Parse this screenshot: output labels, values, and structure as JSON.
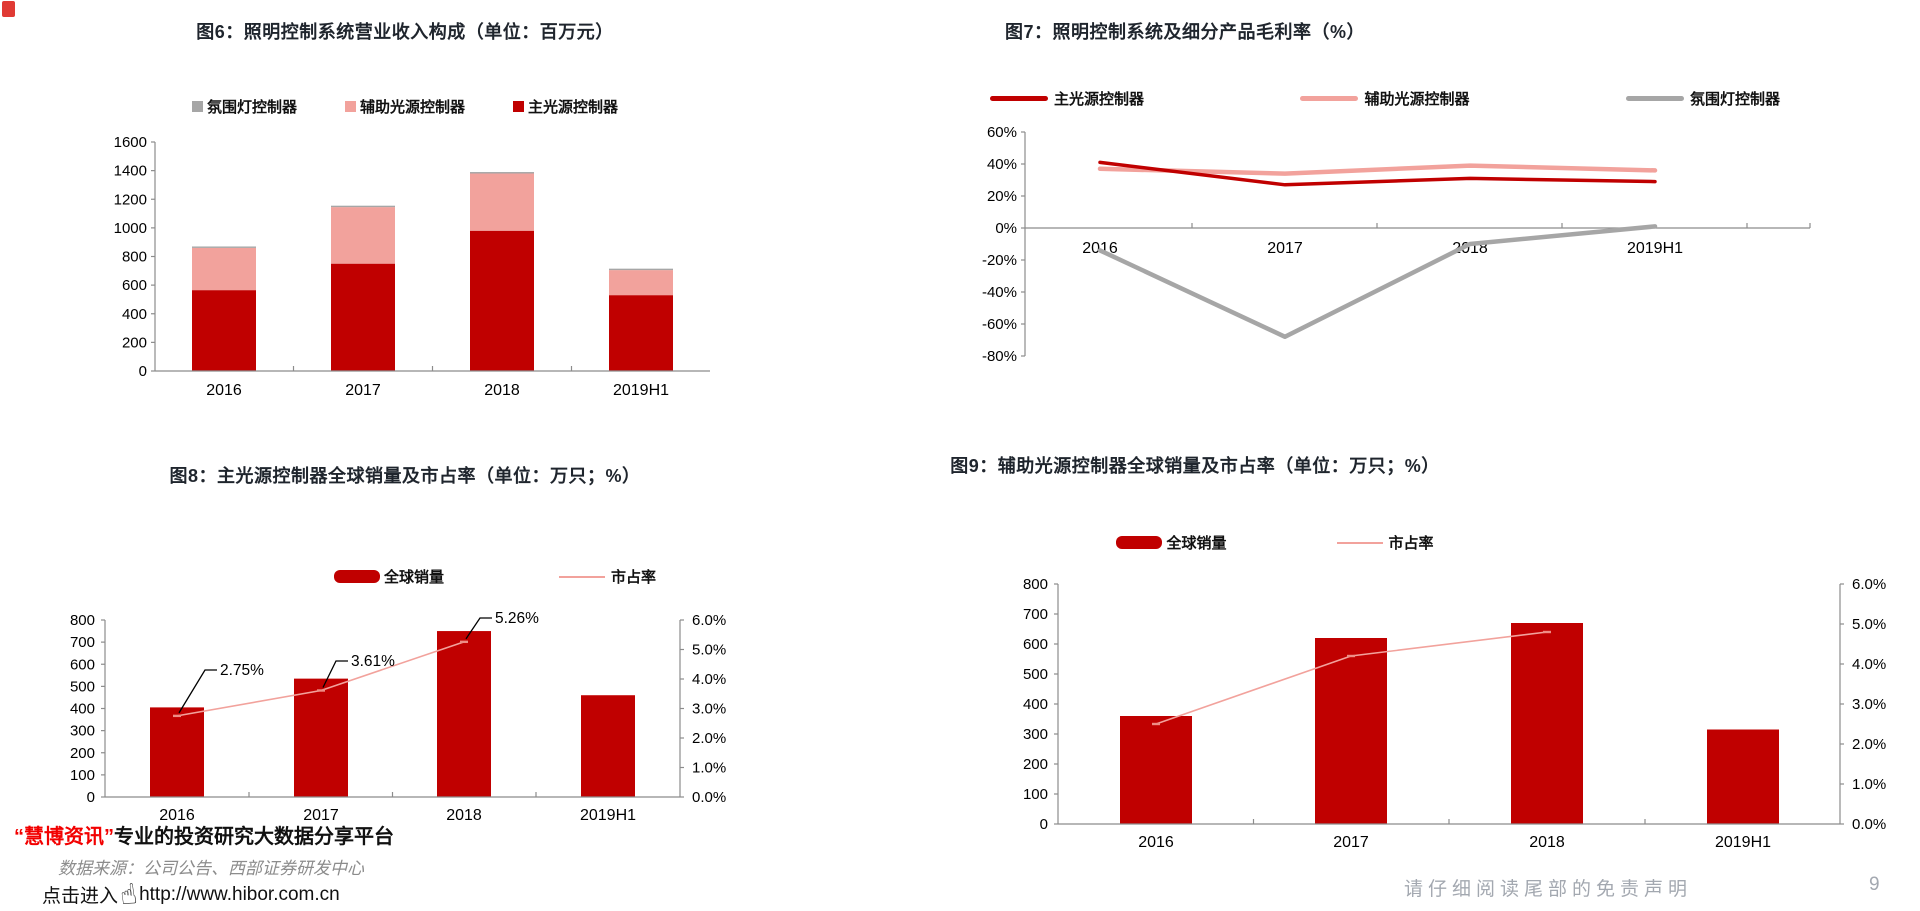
{
  "page": {
    "footer_left": {
      "brand": "“慧博资讯”",
      "tagline": "专业的投资研究大数据分享平台",
      "source_line": "数据来源：公司公告、西部证券研发中心",
      "click_prefix": "点击进入",
      "url": "http://www.hibor.com.cn",
      "cursor_icon": "hand-cursor-icon"
    },
    "footer_right": {
      "disclaimer": "请仔细阅读尾部的免责声明",
      "page_number": "9"
    }
  },
  "colors": {
    "primary_red": "#C00000",
    "pink": "#F2A29C",
    "pink_marker": "#EE8D85",
    "gray": "#A6A6A6",
    "axis": "#8C8C8C",
    "title": "#1F252D",
    "brand_red": "#F20000",
    "source_gray": "#8C8C8C",
    "disclaimer_gray": "#A3A8B0"
  },
  "chart_data": [
    {
      "id": "fig6",
      "type": "bar",
      "variant": "stacked",
      "title": "图6：照明控制系统营业收入构成（单位：百万元）",
      "categories": [
        "2016",
        "2017",
        "2018",
        "2019H1"
      ],
      "series": [
        {
          "name": "主光源控制器",
          "color": "#C00000",
          "values": [
            565,
            750,
            980,
            530
          ]
        },
        {
          "name": "辅助光源控制器",
          "color": "#F2A29C",
          "values": [
            295,
            395,
            400,
            175
          ]
        },
        {
          "name": "氛围灯控制器",
          "color": "#A6A6A6",
          "values": [
            10,
            10,
            10,
            10
          ]
        }
      ],
      "totals": [
        870,
        1155,
        1390,
        715
      ],
      "legend_order": [
        "氛围灯控制器",
        "辅助光源控制器",
        "主光源控制器"
      ],
      "ylim": [
        0,
        1600
      ],
      "ytick_step": 200,
      "legend_position": "top",
      "grid": false
    },
    {
      "id": "fig7",
      "type": "line",
      "title": "图7：照明控制系统及细分产品毛利率（%）",
      "categories": [
        "2016",
        "2017",
        "2018",
        "2019H1"
      ],
      "series": [
        {
          "name": "主光源控制器",
          "color": "#C00000",
          "values": [
            41,
            27,
            31,
            29
          ]
        },
        {
          "name": "辅助光源控制器",
          "color": "#F2A29C",
          "values": [
            37,
            34,
            39,
            36
          ]
        },
        {
          "name": "氛围灯控制器",
          "color": "#A6A6A6",
          "values": [
            -14,
            -68,
            -10,
            1
          ]
        }
      ],
      "ylim": [
        -80,
        60
      ],
      "ytick_step": 20,
      "y_suffix": "%",
      "legend_position": "top",
      "grid": false
    },
    {
      "id": "fig8",
      "type": "combo",
      "title": "图8：主光源控制器全球销量及市占率（单位：万只；%）",
      "categories": [
        "2016",
        "2017",
        "2018",
        "2019H1"
      ],
      "bar_series": {
        "name": "全球销量",
        "color": "#C00000",
        "values": [
          405,
          535,
          750,
          460
        ]
      },
      "line_series": {
        "name": "市占率",
        "color": "#F2A29C",
        "values": [
          2.75,
          3.61,
          5.26,
          null
        ],
        "point_labels": [
          "2.75%",
          "3.61%",
          "5.26%",
          null
        ]
      },
      "ylim": [
        0,
        800
      ],
      "ytick_step": 100,
      "y2lim": [
        0,
        6
      ],
      "y2tick_step": 1,
      "y2_suffix": "%",
      "legend_position": "top",
      "grid": false
    },
    {
      "id": "fig9",
      "type": "combo",
      "title": "图9：辅助光源控制器全球销量及市占率（单位：万只；%）",
      "categories": [
        "2016",
        "2017",
        "2018",
        "2019H1"
      ],
      "bar_series": {
        "name": "全球销量",
        "color": "#C00000",
        "values": [
          360,
          620,
          670,
          315
        ]
      },
      "line_series": {
        "name": "市占率",
        "color": "#F2A29C",
        "values": [
          2.5,
          4.2,
          4.8,
          null
        ],
        "point_labels": [
          null,
          null,
          null,
          null
        ]
      },
      "ylim": [
        0,
        800
      ],
      "ytick_step": 100,
      "y2lim": [
        0,
        6
      ],
      "y2tick_step": 1,
      "y2_suffix": "%",
      "legend_position": "top",
      "grid": false
    }
  ]
}
